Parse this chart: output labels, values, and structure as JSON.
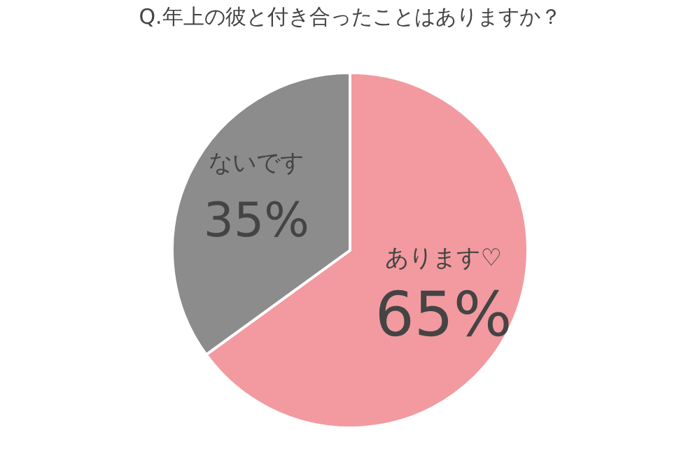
{
  "chart_data": {
    "type": "pie",
    "title": "Q.年上の彼と付き合ったことはありますか？",
    "categories": [
      "あります♡",
      "ないです"
    ],
    "values": [
      65,
      35
    ],
    "colors": [
      "#f29a9f",
      "#8c8c8c"
    ],
    "value_labels": [
      "65%",
      "35%"
    ],
    "legend": false
  }
}
